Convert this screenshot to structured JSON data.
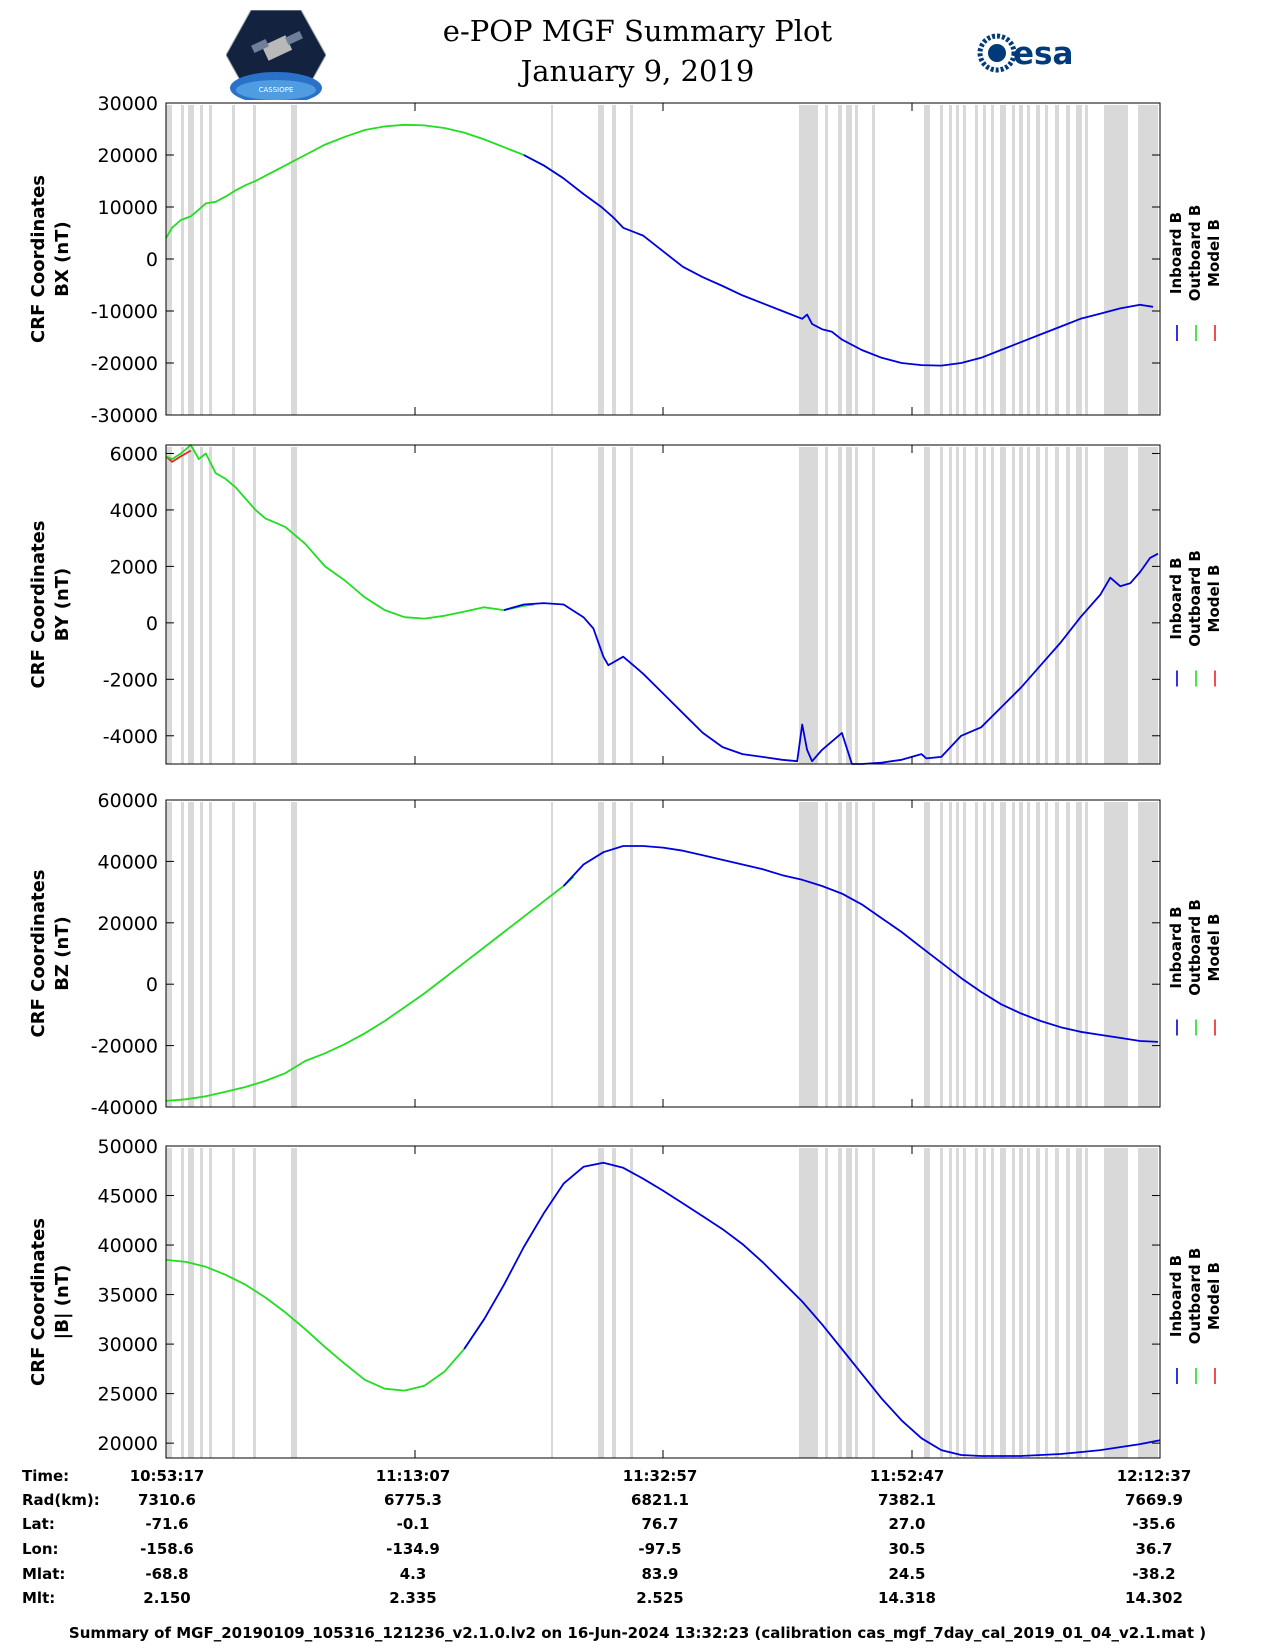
{
  "header": {
    "title": "e-POP MGF Summary Plot",
    "date": "January 9, 2019",
    "left_logo_text": "CASSIOPE",
    "right_logo_text": "esa"
  },
  "colors": {
    "inboard": "#0000dd",
    "outboard": "#22dd22",
    "model": "#ee2222",
    "gap_shading": "#d9d9d9"
  },
  "chart_data": [
    {
      "type": "line",
      "title": "",
      "ylabel": [
        "CRF Coordinates",
        "BX (nT)"
      ],
      "ylim": [
        -30000,
        30000
      ],
      "yticks": [
        30000,
        20000,
        10000,
        0,
        -10000,
        -20000,
        -30000
      ],
      "ytick_labels": [
        "30000",
        "20000",
        "10000",
        "0",
        "-10000",
        "-20000",
        "-30000"
      ],
      "legend": [
        "Inboard B",
        "Outboard B",
        "Model B"
      ],
      "series": [
        {
          "name": "Outboard B",
          "color": "outboard",
          "x": [
            0,
            0.6,
            1.5,
            2.5,
            3.3,
            4,
            5,
            6,
            7,
            8,
            9,
            10,
            12,
            14,
            16,
            18,
            20,
            22,
            24,
            26,
            28,
            30,
            32,
            34,
            36,
            38,
            40
          ],
          "y": [
            4000,
            6000,
            7500,
            8200,
            9500,
            10700,
            11000,
            12000,
            13200,
            14200,
            15000,
            16000,
            18000,
            20000,
            22000,
            23500,
            24800,
            25500,
            25800,
            25700,
            25200,
            24300,
            23000,
            21500,
            20000,
            18000,
            15500
          ]
        },
        {
          "name": "Inboard B",
          "color": "inboard",
          "x": [
            36,
            38,
            40,
            42,
            43.8,
            45,
            46,
            48,
            50,
            52,
            54,
            56,
            58,
            60,
            62,
            64,
            64.5,
            65,
            66,
            67,
            68,
            70,
            72,
            74,
            76,
            78,
            80,
            82,
            84,
            86,
            88,
            90,
            92,
            94,
            96,
            98,
            99.3
          ],
          "y": [
            20000,
            18000,
            15500,
            12500,
            10000,
            8000,
            6000,
            4500,
            1500,
            -1500,
            -3500,
            -5200,
            -7000,
            -8500,
            -10000,
            -11500,
            -10700,
            -12500,
            -13500,
            -14000,
            -15500,
            -17500,
            -19000,
            -20000,
            -20400,
            -20500,
            -20000,
            -19000,
            -17500,
            -16000,
            -14500,
            -13000,
            -11500,
            -10500,
            -9500,
            -8800,
            -9200
          ]
        }
      ]
    },
    {
      "type": "line",
      "title": "",
      "ylabel": [
        "CRF Coordinates",
        "BY (nT)"
      ],
      "ylim": [
        -5000,
        6300
      ],
      "yticks": [
        6000,
        4000,
        2000,
        0,
        -2000,
        -4000
      ],
      "ytick_labels": [
        "6000",
        "4000",
        "2000",
        "0",
        "-2000",
        "-4000"
      ],
      "legend": [
        "Inboard B",
        "Outboard B",
        "Model B"
      ],
      "series": [
        {
          "name": "Model B",
          "color": "model",
          "x": [
            0,
            0.6,
            1.5,
            2.5
          ],
          "y": [
            5900,
            5700,
            5900,
            6100
          ]
        },
        {
          "name": "Outboard B",
          "color": "outboard",
          "x": [
            0,
            0.6,
            1.5,
            2.5,
            3.3,
            4,
            5,
            6,
            7,
            8,
            9,
            10,
            12,
            14,
            16,
            18,
            20,
            22,
            24,
            26,
            28,
            30,
            32,
            34,
            36,
            37
          ],
          "y": [
            5900,
            5800,
            6000,
            6300,
            5800,
            6000,
            5300,
            5100,
            4800,
            4400,
            4000,
            3700,
            3400,
            2800,
            2000,
            1500,
            900,
            450,
            200,
            150,
            250,
            400,
            550,
            450,
            600,
            650
          ]
        },
        {
          "name": "Inboard B",
          "color": "inboard",
          "x": [
            34,
            36,
            38,
            40,
            42,
            43,
            44,
            44.5,
            45,
            46,
            47,
            48,
            50,
            52,
            54,
            56,
            58,
            60,
            62,
            63.5,
            64,
            64.5,
            65,
            66,
            68,
            69,
            70,
            72,
            74,
            76,
            76.5,
            78,
            80,
            82,
            84,
            86,
            88,
            90,
            92,
            94,
            95,
            96,
            97,
            98,
            99,
            99.8
          ],
          "y": [
            450,
            650,
            700,
            650,
            200,
            -200,
            -1200,
            -1500,
            -1400,
            -1200,
            -1500,
            -1800,
            -2500,
            -3200,
            -3900,
            -4400,
            -4650,
            -4750,
            -4850,
            -4900,
            -3600,
            -4500,
            -4900,
            -4500,
            -3900,
            -5000,
            -5000,
            -4950,
            -4850,
            -4650,
            -4800,
            -4750,
            -4000,
            -3700,
            -3000,
            -2300,
            -1500,
            -700,
            200,
            1000,
            1600,
            1300,
            1400,
            1800,
            2300,
            2450
          ]
        }
      ]
    },
    {
      "type": "line",
      "title": "",
      "ylabel": [
        "CRF Coordinates",
        "BZ (nT)"
      ],
      "ylim": [
        -40000,
        60000
      ],
      "yticks": [
        60000,
        40000,
        20000,
        0,
        -20000,
        -40000
      ],
      "ytick_labels": [
        "60000",
        "40000",
        "20000",
        "0",
        "-20000",
        "-40000"
      ],
      "legend": [
        "Inboard B",
        "Outboard B",
        "Model B"
      ],
      "series": [
        {
          "name": "Outboard B",
          "color": "outboard",
          "x": [
            0,
            2,
            4,
            6,
            8,
            10,
            12,
            13,
            14,
            16,
            18,
            20,
            22,
            24,
            26,
            28,
            30,
            32,
            34,
            36,
            38,
            40,
            41
          ],
          "y": [
            -38000,
            -37500,
            -36500,
            -35000,
            -33500,
            -31500,
            -29000,
            -27000,
            -25000,
            -22500,
            -19500,
            -16000,
            -12000,
            -7500,
            -3000,
            2000,
            7000,
            12000,
            17000,
            22000,
            27000,
            32000,
            35000
          ]
        },
        {
          "name": "Inboard B",
          "color": "inboard",
          "x": [
            40,
            42,
            44,
            46,
            48,
            50,
            52,
            54,
            56,
            58,
            60,
            62,
            64,
            65,
            66,
            68,
            70,
            72,
            74,
            76,
            78,
            80,
            82,
            84,
            86,
            88,
            90,
            92,
            94,
            96,
            98,
            99.8
          ],
          "y": [
            32000,
            39000,
            43000,
            45000,
            45000,
            44500,
            43500,
            42000,
            40500,
            39000,
            37500,
            35500,
            34000,
            33000,
            32000,
            29500,
            26000,
            21500,
            17000,
            12000,
            7000,
            2000,
            -2500,
            -6500,
            -9500,
            -12000,
            -14000,
            -15500,
            -16500,
            -17500,
            -18500,
            -18800
          ]
        }
      ]
    },
    {
      "type": "line",
      "title": "",
      "ylabel": [
        "CRF Coordinates",
        "|B| (nT)"
      ],
      "ylim": [
        18500,
        50000
      ],
      "yticks": [
        50000,
        45000,
        40000,
        35000,
        30000,
        25000,
        20000
      ],
      "ytick_labels": [
        "50000",
        "45000",
        "40000",
        "35000",
        "30000",
        "25000",
        "20000"
      ],
      "legend": [
        "Inboard B",
        "Outboard B",
        "Model B"
      ],
      "series": [
        {
          "name": "Outboard B",
          "color": "outboard",
          "x": [
            0,
            2,
            4,
            6,
            8,
            10,
            12,
            14,
            16,
            18,
            20,
            22,
            24,
            26,
            28,
            30,
            32
          ],
          "y": [
            38500,
            38300,
            37800,
            37000,
            36000,
            34700,
            33200,
            31500,
            29700,
            28000,
            26400,
            25500,
            25300,
            25800,
            27200,
            29500,
            32500
          ]
        },
        {
          "name": "Inboard B",
          "color": "inboard",
          "x": [
            30,
            32,
            34,
            36,
            38,
            40,
            42,
            44,
            46,
            48,
            50,
            52,
            54,
            56,
            58,
            60,
            62,
            64,
            66,
            68,
            70,
            72,
            74,
            76,
            78,
            80,
            82,
            84,
            86,
            88,
            90,
            92,
            94,
            96,
            98,
            100
          ],
          "y": [
            29500,
            32500,
            36000,
            39800,
            43200,
            46200,
            47900,
            48300,
            47800,
            46700,
            45500,
            44200,
            42900,
            41600,
            40100,
            38300,
            36300,
            34300,
            32000,
            29500,
            27000,
            24500,
            22300,
            20500,
            19300,
            18800,
            18700,
            18700,
            18700,
            18800,
            18900,
            19100,
            19300,
            19600,
            19900,
            20300
          ]
        }
      ]
    }
  ],
  "info": {
    "labels": [
      "Time:",
      "Rad(km):",
      "Lat:",
      "Lon:",
      "Mlat:",
      "Mlt:"
    ],
    "columns": [
      [
        "10:53:17",
        "7310.6",
        "-71.6",
        "-158.6",
        "-68.8",
        "2.150"
      ],
      [
        "11:13:07",
        "6775.3",
        "-0.1",
        "-134.9",
        "4.3",
        "2.335"
      ],
      [
        "11:32:57",
        "6821.1",
        "76.7",
        "-97.5",
        "83.9",
        "2.525"
      ],
      [
        "11:52:47",
        "7382.1",
        "27.0",
        "30.5",
        "24.5",
        "14.318"
      ],
      [
        "12:12:37",
        "7669.9",
        "-35.6",
        "36.7",
        "-38.2",
        "14.302"
      ]
    ]
  },
  "footer": "Summary of MGF_20190109_105316_121236_v2.1.0.lv2 on 16-Jun-2024 13:32:23 (calibration cas_mgf_7day_cal_2019_01_04_v2.1.mat )"
}
